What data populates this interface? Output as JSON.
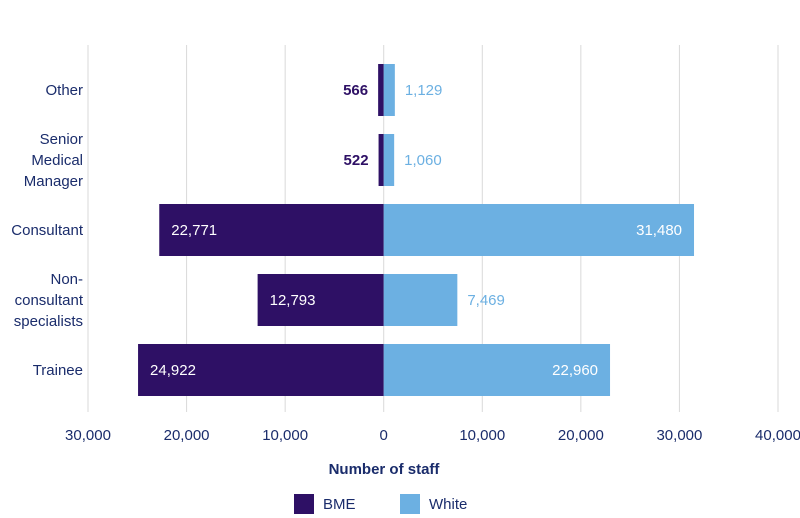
{
  "chart_data": {
    "type": "bar",
    "orientation": "horizontal-diverging",
    "categories": [
      "Other",
      "Senior Medical Manager",
      "Consultant",
      "Non-consultant specialists",
      "Trainee"
    ],
    "category_lines": [
      [
        "Other"
      ],
      [
        "Senior",
        "Medical",
        "Manager"
      ],
      [
        "Consultant"
      ],
      [
        "Non-",
        "consultant",
        "specialists"
      ],
      [
        "Trainee"
      ]
    ],
    "series": [
      {
        "name": "BME",
        "values": [
          566,
          522,
          22771,
          12793,
          24922
        ],
        "color": "#2e1065",
        "direction": "left"
      },
      {
        "name": "White",
        "values": [
          1129,
          1060,
          31480,
          7469,
          22960
        ],
        "color": "#6cb0e2",
        "direction": "right"
      }
    ],
    "value_labels": {
      "BME": [
        "566",
        "522",
        "22,771",
        "12,793",
        "24,922"
      ],
      "White": [
        "1,129",
        "1,060",
        "31,480",
        "7,469",
        "22,960"
      ]
    },
    "xlabel": "Number of staff",
    "xlim": [
      -30000,
      40000
    ],
    "xticks": [
      -30000,
      -20000,
      -10000,
      0,
      10000,
      20000,
      30000,
      40000
    ],
    "xtick_labels": [
      "30,000",
      "20,000",
      "10,000",
      "0",
      "10,000",
      "20,000",
      "30,000",
      "40,000"
    ],
    "grid": "vertical",
    "grid_color": "#d9d9d9",
    "text_color": "#1a2c6b",
    "legend": {
      "position": "bottom",
      "entries": [
        "BME",
        "White"
      ]
    }
  }
}
